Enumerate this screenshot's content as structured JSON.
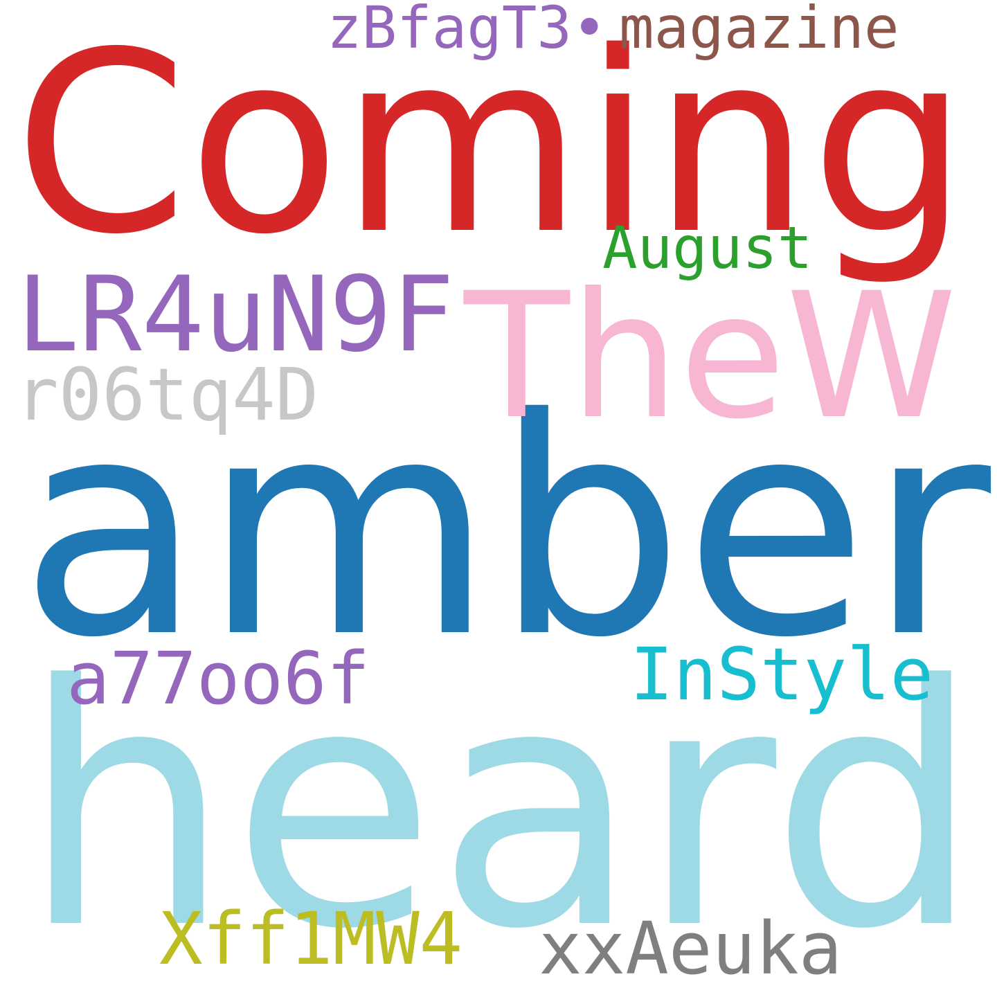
{
  "words": {
    "coming": {
      "text": "Coming",
      "color": "#d62728"
    },
    "zbfagt3": {
      "text": "zBfagT3•",
      "color": "#9467bd"
    },
    "magazine": {
      "text": "magazine",
      "color": "#8c564b"
    },
    "august": {
      "text": "August",
      "color": "#2ca02c"
    },
    "lr4un9f": {
      "text": "LR4uN9F",
      "color": "#9467bd"
    },
    "thew": {
      "text": "TheW",
      "color": "#f7b6d2"
    },
    "r06tq4d": {
      "text": "r06tq4D",
      "color": "#c7c7c7"
    },
    "amber": {
      "text": "amber",
      "color": "#1f77b4"
    },
    "a77oo6f": {
      "text": "a77oo6f",
      "color": "#9467bd"
    },
    "instyle": {
      "text": "InStyle",
      "color": "#17becf"
    },
    "heard": {
      "text": "heard",
      "color": "#9edae5"
    },
    "xff1mw4": {
      "text": "Xff1MW4",
      "color": "#bcbd22"
    },
    "xxaeuka": {
      "text": "xxAeuka",
      "color": "#7f7f7f"
    }
  }
}
